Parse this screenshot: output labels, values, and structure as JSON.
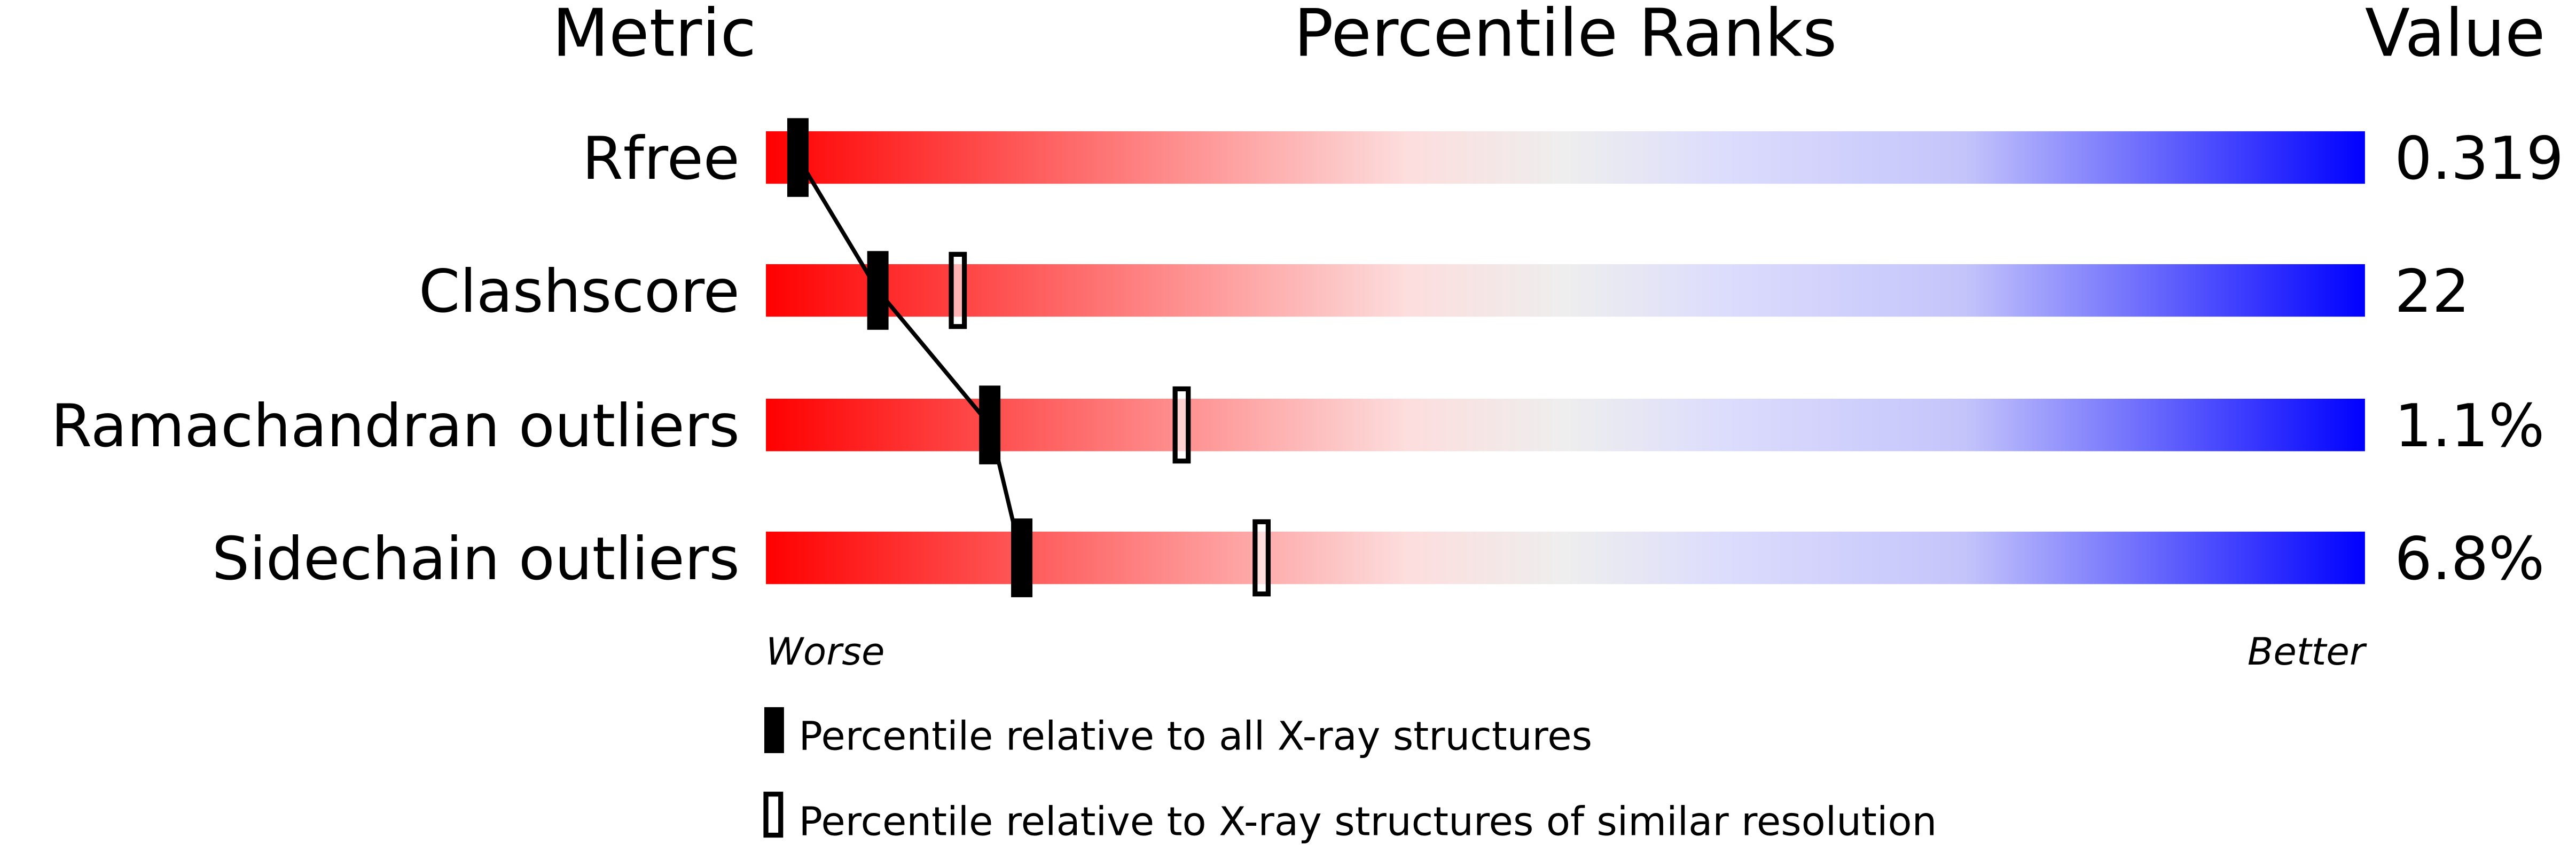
{
  "chart_data": {
    "type": "bar",
    "headers": {
      "metric": "Metric",
      "ranks": "Percentile Ranks",
      "value": "Value"
    },
    "xlim": [
      0,
      100
    ],
    "axis_labels": {
      "left": "Worse",
      "right": "Better"
    },
    "colors": {
      "worse": "#ff0000",
      "middle": "#eeeeee",
      "better": "#0000ff",
      "marker": "#000000"
    },
    "rows": [
      {
        "metric": "Rfree",
        "value": "0.319",
        "percentile_all": 2,
        "percentile_similar": null
      },
      {
        "metric": "Clashscore",
        "value": "22",
        "percentile_all": 7,
        "percentile_similar": 12
      },
      {
        "metric": "Ramachandran outliers",
        "value": "1.1%",
        "percentile_all": 14,
        "percentile_similar": 26
      },
      {
        "metric": "Sidechain outliers",
        "value": "6.8%",
        "percentile_all": 16,
        "percentile_similar": 31
      }
    ],
    "legend": [
      {
        "marker": "filled",
        "label": "Percentile relative to all X-ray structures"
      },
      {
        "marker": "hollow",
        "label": "Percentile relative to X-ray structures of similar resolution"
      }
    ]
  }
}
